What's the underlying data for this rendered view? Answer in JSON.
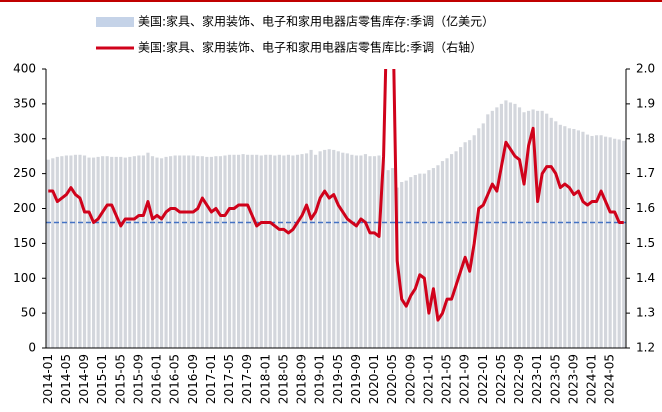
{
  "chart_data": {
    "type": "bar_line",
    "categories": [
      "2014-01",
      null,
      null,
      null,
      "2014-05",
      null,
      null,
      null,
      "2014-09",
      null,
      null,
      null,
      "2015-01",
      null,
      null,
      null,
      "2015-05",
      null,
      null,
      null,
      "2015-09",
      null,
      null,
      null,
      "2016-01",
      null,
      null,
      null,
      "2016-05",
      null,
      null,
      null,
      "2016-09",
      null,
      null,
      null,
      "2017-01",
      null,
      null,
      null,
      "2017-05",
      null,
      null,
      null,
      "2017-09",
      null,
      null,
      null,
      "2018-01",
      null,
      null,
      null,
      "2018-05",
      null,
      null,
      null,
      "2018-09",
      null,
      null,
      null,
      "2019-01",
      null,
      null,
      null,
      "2019-05",
      null,
      null,
      null,
      "2019-09",
      null,
      null,
      null,
      "2020-01",
      null,
      null,
      null,
      "2020-05",
      null,
      null,
      null,
      "2020-09",
      null,
      null,
      null,
      "2021-01",
      null,
      null,
      null,
      "2021-05",
      null,
      null,
      null,
      "2021-09",
      null,
      null,
      null,
      "2022-01",
      null,
      null,
      null,
      "2022-05",
      null,
      null,
      null,
      "2022-09",
      null,
      null,
      null,
      "2023-01",
      null,
      null,
      null,
      "2023-05",
      null,
      null,
      null,
      "2023-09",
      null,
      null,
      null,
      "2024-01",
      null,
      null,
      null,
      "2024-05",
      null,
      null,
      null
    ],
    "series": [
      {
        "name": "美国:家具、家用装饰、电子和家用电器店零售库存:季调（亿美元）",
        "type": "bar",
        "color": "#d3d6dc",
        "legend_color": "#c5d3e8",
        "values": [
          270,
          272,
          274,
          275,
          276,
          276,
          277,
          277,
          276,
          273,
          273,
          274,
          275,
          275,
          274,
          274,
          274,
          273,
          274,
          275,
          276,
          276,
          280,
          275,
          273,
          272,
          274,
          275,
          276,
          276,
          276,
          276,
          276,
          275,
          275,
          274,
          274,
          275,
          275,
          276,
          277,
          277,
          277,
          278,
          277,
          277,
          277,
          276,
          277,
          277,
          276,
          277,
          276,
          277,
          276,
          277,
          278,
          279,
          284,
          277,
          282,
          284,
          285,
          284,
          282,
          280,
          279,
          277,
          276,
          276,
          278,
          275,
          275,
          276,
          270,
          255,
          258,
          230,
          238,
          240,
          245,
          248,
          250,
          250,
          255,
          258,
          262,
          268,
          272,
          278,
          282,
          288,
          295,
          298,
          305,
          315,
          322,
          335,
          340,
          345,
          350,
          355,
          352,
          350,
          345,
          338,
          340,
          342,
          340,
          340,
          336,
          330,
          325,
          320,
          318,
          315,
          314,
          312,
          310,
          306,
          304,
          305,
          305,
          303,
          302,
          300,
          299,
          297
        ]
      },
      {
        "name": "美国:家具、家用装饰、电子和家用电器店零售库比:季调（右轴）",
        "type": "line",
        "axis": "y2",
        "color": "#d0021b",
        "values": [
          1.65,
          1.65,
          1.62,
          1.63,
          1.64,
          1.66,
          1.64,
          1.63,
          1.59,
          1.59,
          1.56,
          1.57,
          1.59,
          1.61,
          1.61,
          1.58,
          1.55,
          1.57,
          1.57,
          1.57,
          1.58,
          1.58,
          1.62,
          1.57,
          1.58,
          1.57,
          1.59,
          1.6,
          1.6,
          1.59,
          1.59,
          1.59,
          1.59,
          1.6,
          1.63,
          1.61,
          1.59,
          1.6,
          1.58,
          1.58,
          1.6,
          1.6,
          1.61,
          1.61,
          1.61,
          1.58,
          1.55,
          1.56,
          1.56,
          1.56,
          1.55,
          1.54,
          1.54,
          1.53,
          1.54,
          1.56,
          1.58,
          1.61,
          1.57,
          1.59,
          1.63,
          1.65,
          1.63,
          1.64,
          1.61,
          1.59,
          1.57,
          1.56,
          1.55,
          1.57,
          1.56,
          1.53,
          1.53,
          1.52,
          1.75,
          2.3,
          2.2,
          1.45,
          1.34,
          1.32,
          1.35,
          1.37,
          1.41,
          1.4,
          1.3,
          1.37,
          1.28,
          1.3,
          1.34,
          1.34,
          1.38,
          1.42,
          1.46,
          1.42,
          1.5,
          1.6,
          1.61,
          1.64,
          1.67,
          1.65,
          1.72,
          1.79,
          1.77,
          1.75,
          1.74,
          1.67,
          1.78,
          1.83,
          1.62,
          1.7,
          1.72,
          1.72,
          1.7,
          1.66,
          1.67,
          1.66,
          1.64,
          1.65,
          1.62,
          1.61,
          1.62,
          1.62,
          1.65,
          1.62,
          1.59,
          1.59,
          1.56,
          1.56
        ]
      }
    ],
    "reference_line": {
      "value": 1.56,
      "axis": "y2",
      "color": "#4472c4"
    },
    "ylim": [
      0,
      400
    ],
    "yticks": [
      0,
      50,
      100,
      150,
      200,
      250,
      300,
      350,
      400
    ],
    "y2lim": [
      1.2,
      2.0
    ],
    "y2ticks": [
      1.2,
      1.3,
      1.4,
      1.5,
      1.6,
      1.7,
      1.8,
      1.9,
      {
        "value": 2,
        "label": "2.0"
      }
    ]
  }
}
